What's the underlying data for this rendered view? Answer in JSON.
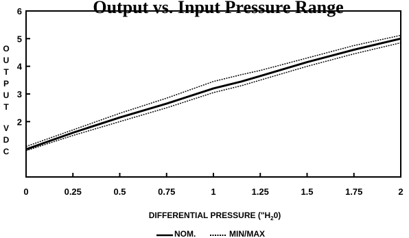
{
  "chart_data": {
    "type": "line",
    "title": "Output vs. Input Pressure Range",
    "xlabel_parts": [
      "DIFFERENTIAL PRESSURE (\"H",
      "2",
      "0)"
    ],
    "ylabel": "OUTPUT VDC",
    "xlim": [
      0,
      2
    ],
    "ylim": [
      0,
      6
    ],
    "x_ticks": [
      "0",
      "0.25",
      "0.5",
      "0.75",
      "1",
      "1.25",
      "1.5",
      "1.75",
      "2"
    ],
    "y_ticks": [
      "2",
      "3",
      "4",
      "5",
      "6"
    ],
    "grid": false,
    "legend_position": "bottom-center",
    "x": [
      0,
      0.25,
      0.5,
      0.75,
      1.0,
      1.15,
      1.25,
      1.5,
      1.75,
      2.0
    ],
    "series": [
      {
        "name": "NOM.",
        "style": "solid",
        "values": [
          1.0,
          1.6,
          2.15,
          2.65,
          3.2,
          3.45,
          3.65,
          4.15,
          4.6,
          5.0
        ]
      },
      {
        "name": "MIN/MAX",
        "style": "dotted",
        "values": [
          1.1,
          1.7,
          2.3,
          2.85,
          3.45,
          3.7,
          3.85,
          4.3,
          4.75,
          5.12
        ]
      },
      {
        "name": "",
        "style": "dotted",
        "values": [
          0.95,
          1.5,
          2.0,
          2.5,
          3.05,
          3.3,
          3.5,
          4.0,
          4.45,
          4.85
        ]
      }
    ]
  },
  "legend": {
    "nom_label": "NOM.",
    "minmax_label": "MIN/MAX"
  }
}
